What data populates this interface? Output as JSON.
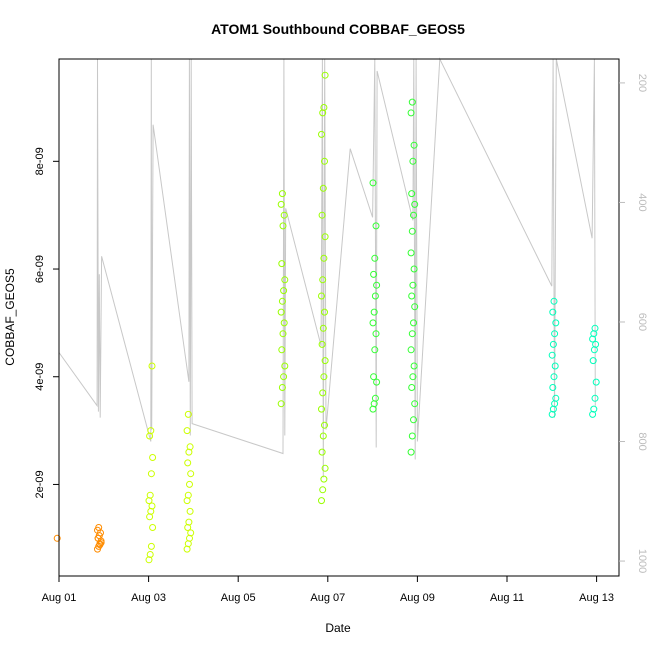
{
  "chart_data": {
    "type": "scatter",
    "title": "ATOM1 Southbound COBBAF_GEOS5",
    "xlabel": "Date",
    "ylabel": "COBBAF_GEOS5",
    "x_ticks": [
      "Aug 01",
      "Aug 03",
      "Aug 05",
      "Aug 07",
      "Aug 09",
      "Aug 11",
      "Aug 13"
    ],
    "x_tick_days": [
      1,
      3,
      5,
      7,
      9,
      11,
      13
    ],
    "xlim": [
      1.0,
      13.5
    ],
    "y_ticks": [
      "2e-09",
      "4e-09",
      "6e-09",
      "8e-09"
    ],
    "y_tick_values": [
      2e-09,
      4e-09,
      6e-09,
      8e-09
    ],
    "ylim": [
      3e-10,
      9.9e-09
    ],
    "right_axis": {
      "ticks": [
        "200",
        "400",
        "600",
        "800",
        "1000"
      ],
      "tick_values": [
        200,
        400,
        600,
        800,
        1000
      ],
      "lim": [
        1025,
        160
      ],
      "color": "#bdbdbd"
    },
    "grid": false,
    "series": [
      {
        "color": "#ff8c00",
        "clusters": [
          {
            "x": 1.0,
            "y": [
              1e-09
            ]
          },
          {
            "x": 1.9,
            "y": [
              8e-10,
              8.5e-10,
              9e-10,
              9.5e-10,
              1e-09,
              1.05e-09,
              1.1e-09,
              1.15e-09,
              1.2e-09,
              8.8e-10,
              9.2e-10,
              1e-09
            ]
          }
        ]
      },
      {
        "color": "#ccff00",
        "clusters": [
          {
            "x": 3.05,
            "y": [
              6e-10,
              7e-10,
              8.5e-10,
              1.2e-09,
              1.4e-09,
              1.5e-09,
              1.6e-09,
              1.7e-09,
              1.8e-09,
              2.2e-09,
              2.5e-09,
              2.9e-09,
              3e-09,
              4.2e-09
            ]
          },
          {
            "x": 3.9,
            "y": [
              8e-10,
              9e-10,
              1e-09,
              1.1e-09,
              1.2e-09,
              1.3e-09,
              1.5e-09,
              1.7e-09,
              1.8e-09,
              2e-09,
              2.2e-09,
              2.4e-09,
              2.6e-09,
              2.7e-09,
              3e-09,
              3.3e-09
            ]
          }
        ]
      },
      {
        "color": "#99ff00",
        "clusters": [
          {
            "x": 6.0,
            "y": [
              3.5e-09,
              3.8e-09,
              4e-09,
              4.2e-09,
              4.5e-09,
              4.8e-09,
              5e-09,
              5.2e-09,
              5.4e-09,
              5.6e-09,
              5.8e-09,
              6.1e-09,
              6.8e-09,
              7e-09,
              7.2e-09,
              7.4e-09
            ]
          },
          {
            "x": 6.9,
            "y": [
              1.7e-09,
              1.9e-09,
              2.1e-09,
              2.3e-09,
              2.6e-09,
              2.9e-09,
              3.1e-09,
              3.4e-09,
              3.7e-09,
              4e-09,
              4.3e-09,
              4.6e-09,
              4.9e-09,
              5.2e-09,
              5.5e-09,
              5.8e-09,
              6.2e-09,
              6.6e-09,
              7e-09,
              7.5e-09,
              8e-09,
              8.5e-09,
              8.9e-09,
              9e-09,
              9.6e-09
            ]
          }
        ]
      },
      {
        "color": "#33ff33",
        "clusters": [
          {
            "x": 8.05,
            "y": [
              3.4e-09,
              3.5e-09,
              3.6e-09,
              3.9e-09,
              4e-09,
              4.5e-09,
              4.8e-09,
              5e-09,
              5.2e-09,
              5.5e-09,
              5.7e-09,
              5.9e-09,
              6.2e-09,
              6.8e-09,
              7.6e-09
            ]
          },
          {
            "x": 8.9,
            "y": [
              2.6e-09,
              2.9e-09,
              3.2e-09,
              3.5e-09,
              3.8e-09,
              4e-09,
              4.2e-09,
              4.5e-09,
              4.8e-09,
              5e-09,
              5.3e-09,
              5.5e-09,
              5.7e-09,
              6e-09,
              6.3e-09,
              6.7e-09,
              7e-09,
              7.2e-09,
              7.4e-09,
              8e-09,
              8.3e-09,
              8.9e-09,
              9.1e-09
            ]
          }
        ]
      },
      {
        "color": "#00ffbb",
        "clusters": [
          {
            "x": 12.05,
            "y": [
              3.3e-09,
              3.4e-09,
              3.5e-09,
              3.6e-09,
              3.8e-09,
              4e-09,
              4.2e-09,
              4.4e-09,
              4.6e-09,
              4.8e-09,
              5e-09,
              5.2e-09,
              5.4e-09
            ]
          },
          {
            "x": 12.95,
            "y": [
              3.3e-09,
              3.4e-09,
              3.6e-09,
              3.9e-09,
              4.3e-09,
              4.5e-09,
              4.6e-09,
              4.7e-09,
              4.8e-09,
              4.9e-09
            ]
          }
        ]
      }
    ],
    "trace": {
      "color": "#c8c8c8",
      "note_axis": "right",
      "points": [
        [
          1.0,
          651
        ],
        [
          1.85,
          740
        ],
        [
          1.86,
          160
        ],
        [
          1.87,
          460
        ],
        [
          1.88,
          750
        ],
        [
          1.9,
          520
        ],
        [
          1.92,
          760
        ],
        [
          1.95,
          490
        ],
        [
          3.05,
          800
        ],
        [
          3.06,
          160
        ],
        [
          3.07,
          780
        ],
        [
          3.1,
          270
        ],
        [
          3.9,
          700
        ],
        [
          3.91,
          160
        ],
        [
          3.93,
          790
        ],
        [
          3.95,
          160
        ],
        [
          3.97,
          770
        ],
        [
          6.0,
          820
        ],
        [
          6.02,
          160
        ],
        [
          6.04,
          790
        ],
        [
          6.06,
          410
        ],
        [
          6.85,
          640
        ],
        [
          6.88,
          160
        ],
        [
          6.9,
          860
        ],
        [
          6.93,
          160
        ],
        [
          6.96,
          780
        ],
        [
          7.5,
          310
        ],
        [
          8.0,
          425
        ],
        [
          8.05,
          160
        ],
        [
          8.08,
          810
        ],
        [
          8.1,
          180
        ],
        [
          8.9,
          430
        ],
        [
          8.92,
          160
        ],
        [
          8.95,
          830
        ],
        [
          8.97,
          160
        ],
        [
          9.0,
          800
        ],
        [
          9.5,
          160
        ],
        [
          12.0,
          540
        ],
        [
          12.03,
          160
        ],
        [
          12.06,
          760
        ],
        [
          12.1,
          160
        ],
        [
          12.9,
          460
        ],
        [
          12.95,
          160
        ],
        [
          12.97,
          740
        ]
      ]
    }
  }
}
